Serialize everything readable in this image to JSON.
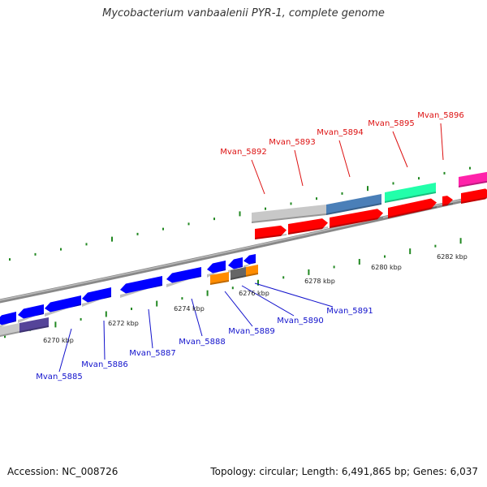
{
  "title": "Mycobacterium vanbaalenii PYR-1, complete genome",
  "footer": {
    "accession": "Accession: NC_008726",
    "summary": "Topology: circular; Length: 6,491,865 bp; Genes: 6,037"
  },
  "colors": {
    "forward_label": "#dd1111",
    "reverse_label": "#1111cc",
    "tick": "#228822",
    "backbone": "#888888",
    "cds_forward": "#ff0000",
    "cds_reverse": "#0000ff",
    "gene_grey": "#c8c8c8",
    "gene_steelblue": "#4a7fb8",
    "gene_teal": "#22ffaa",
    "gene_magenta": "#ff22aa",
    "gene_orange": "#ff8c00",
    "gene_darkgrey": "#666666",
    "gene_slate": "#554499"
  },
  "scale_ticks": [
    {
      "label": "6270 kbp"
    },
    {
      "label": "6272 kbp"
    },
    {
      "label": "6274 kbp"
    },
    {
      "label": "6276 kbp"
    },
    {
      "label": "6278 kbp"
    },
    {
      "label": "6280 kbp"
    },
    {
      "label": "6282 kbp"
    }
  ],
  "forward_genes": [
    {
      "label": "Mvan_5892"
    },
    {
      "label": "Mvan_5893"
    },
    {
      "label": "Mvan_5894"
    },
    {
      "label": "Mvan_5895"
    },
    {
      "label": "Mvan_5896"
    }
  ],
  "reverse_genes": [
    {
      "label": "Mvan_5885"
    },
    {
      "label": "Mvan_5886"
    },
    {
      "label": "Mvan_5887"
    },
    {
      "label": "Mvan_5888"
    },
    {
      "label": "Mvan_5889"
    },
    {
      "label": "Mvan_5890"
    },
    {
      "label": "Mvan_5891"
    }
  ]
}
